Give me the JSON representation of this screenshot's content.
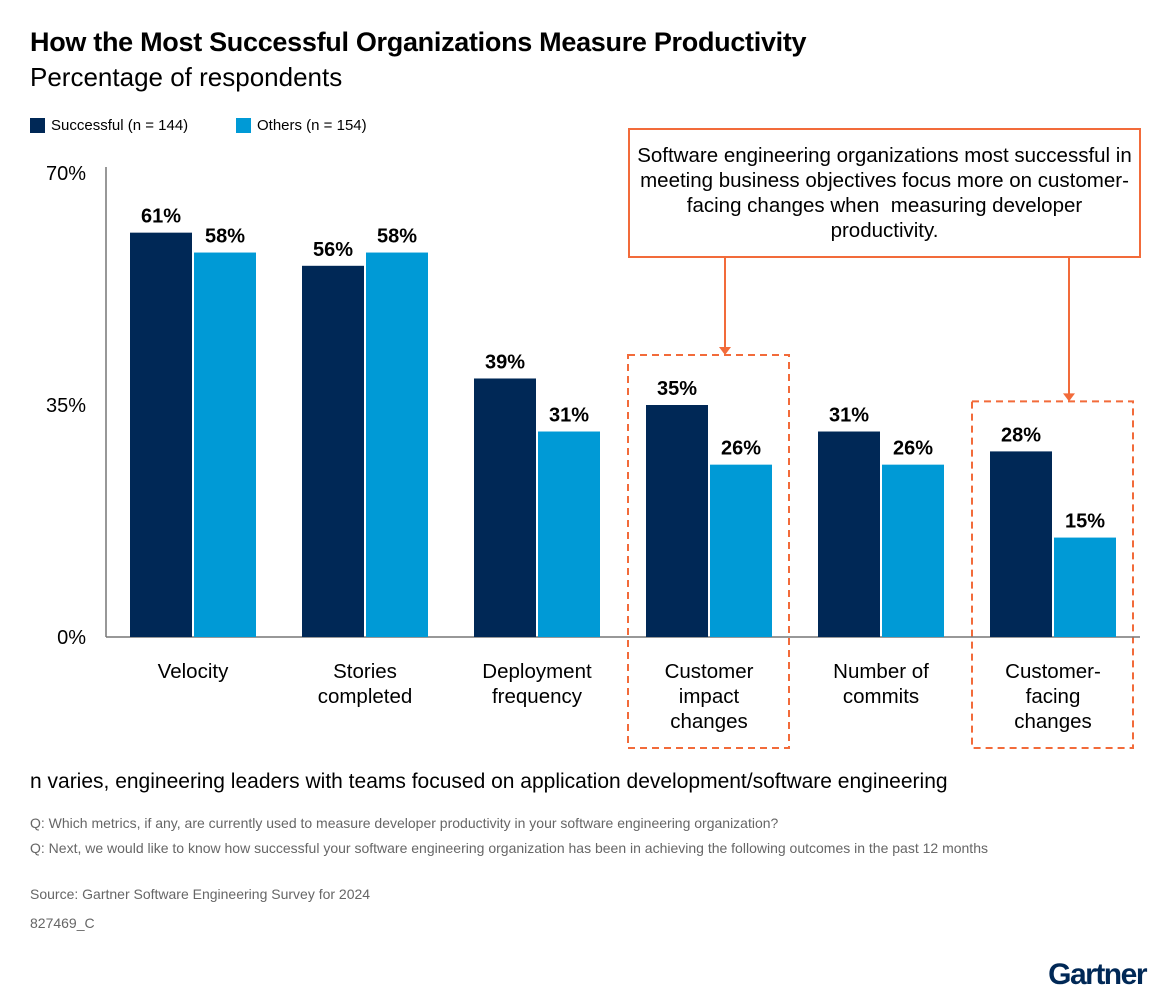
{
  "title": "How the Most Successful Organizations Measure Productivity",
  "subtitle": "Percentage of respondents",
  "chart_data": {
    "type": "bar",
    "categories": [
      [
        "Velocity"
      ],
      [
        "Stories",
        "completed"
      ],
      [
        "Deployment",
        "frequency"
      ],
      [
        "Customer",
        "impact",
        "changes"
      ],
      [
        "Number of",
        "commits"
      ],
      [
        "Customer-",
        "facing",
        "changes"
      ]
    ],
    "series": [
      {
        "name": "Successful (n = 144)",
        "color": "#002856",
        "values": [
          61,
          56,
          39,
          35,
          31,
          28
        ]
      },
      {
        "name": "Others (n = 154)",
        "color": "#009ad6",
        "values": [
          58,
          58,
          31,
          26,
          26,
          15
        ]
      }
    ],
    "ylim": [
      0,
      70
    ],
    "yticks": [
      "0%",
      "35%",
      "70%"
    ],
    "ytick_values": [
      0,
      35,
      70
    ],
    "legend": "top-left",
    "grid": false,
    "highlighted_categories": [
      3,
      5
    ],
    "highlight_color": "#f26b3a",
    "annotation": "Software engineering organizations most successful in meeting business objectives focus more on customer-facing changes when  measuring developer productivity."
  },
  "note": "n varies, engineering leaders with teams focused on application development/software engineering",
  "footnotes": [
    "Q: Which metrics, if any, are currently used to measure developer productivity in your software engineering organization?",
    "Q: Next, we would like to know how successful your software engineering organization has been in achieving the following outcomes in the past 12 months",
    "Source: Gartner Software Engineering Survey for 2024",
    "827469_C"
  ],
  "logo": "Gartner"
}
